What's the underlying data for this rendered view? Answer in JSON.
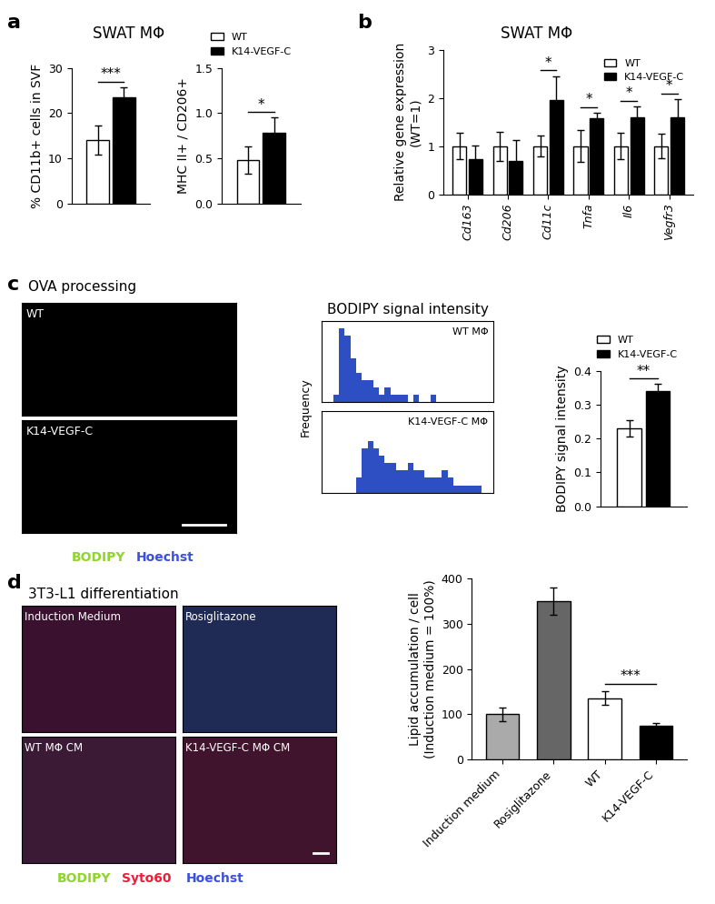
{
  "panels": [
    {
      "label": "a",
      "title": "SWAT MΦ"
    },
    {
      "label": "b",
      "title": "SWAT MΦ"
    },
    {
      "label": "c"
    },
    {
      "label": "d"
    }
  ],
  "images": [
    {
      "title": "OVA processing",
      "tiles": [
        "WT",
        "K14-VEGF-C"
      ],
      "channels": [
        {
          "name": "BODIPY",
          "color": "#8fd62a"
        },
        {
          "name": "Hoechst",
          "color": "#3b4fe0"
        }
      ]
    },
    {
      "title": "3T3-L1 differentiation",
      "tiles": [
        "Induction Medium",
        "Rosiglitazone",
        "WT MΦ CM",
        "K14-VEGF-C MΦ CM"
      ],
      "channels": [
        {
          "name": "BODIPY",
          "color": "#8fd62a"
        },
        {
          "name": "Syto60",
          "color": "#e8203a"
        },
        {
          "name": "Hoechst",
          "color": "#3b4fe0"
        }
      ]
    }
  ],
  "chart_data": [
    {
      "type": "bar",
      "categories": [
        null
      ],
      "ylabel": "% CD11b+ cells in SVF",
      "series": [
        {
          "name": "WT",
          "color": "#ffffff",
          "values": [
            14
          ],
          "errors": [
            3.2
          ]
        },
        {
          "name": "K14-VEGF-C",
          "color": "#000000",
          "values": [
            23.5
          ],
          "errors": [
            2.2
          ]
        }
      ],
      "ylim": [
        0,
        30
      ],
      "yticks": [
        0,
        10,
        20,
        30
      ],
      "annotations": [
        "***"
      ],
      "tick_labels": "y"
    },
    {
      "type": "bar",
      "categories": [
        null
      ],
      "ylabel": "MHC II+ / CD206+",
      "series": [
        {
          "name": "WT",
          "color": "#ffffff",
          "values": [
            0.48
          ],
          "errors": [
            0.15
          ]
        },
        {
          "name": "K14-VEGF-C",
          "color": "#000000",
          "values": [
            0.78
          ],
          "errors": [
            0.17
          ]
        }
      ],
      "ylim": [
        0,
        1.5
      ],
      "yticks": [
        {
          "value": 0,
          "label": "0.0"
        },
        {
          "value": 0.5,
          "label": "0.5"
        },
        {
          "value": 1.0,
          "label": "1.0"
        },
        {
          "value": 1.5,
          "label": "1.5"
        }
      ],
      "annotations": [
        "*"
      ],
      "tick_labels": "y",
      "legend": "lower right"
    },
    {
      "type": "bar",
      "categories": [
        "Cd163",
        "Cd206",
        "Cd11c",
        "Tnfa",
        "Il6",
        "Vegfr3"
      ],
      "ylabel": "Relative gene expression\n(WT=1)",
      "series": [
        {
          "name": "WT",
          "color": "#ffffff",
          "values": [
            1,
            1,
            1,
            1,
            1,
            1
          ],
          "errors": [
            0.27,
            0.3,
            0.22,
            0.33,
            0.27,
            0.26
          ]
        },
        {
          "name": "K14-VEGF-C",
          "color": "#000000",
          "values": [
            0.73,
            0.7,
            1.95,
            1.57,
            1.6,
            1.6
          ],
          "errors": [
            0.28,
            0.43,
            0.5,
            0.12,
            0.22,
            0.37
          ]
        }
      ],
      "ylim": [
        0,
        3
      ],
      "yticks": [
        0,
        1,
        2,
        3
      ],
      "annotations": [
        null,
        null,
        "*",
        "*",
        "*",
        "*"
      ],
      "legend": "upper right"
    },
    {
      "type": "histogram",
      "title": "BODIPY signal intensity",
      "ylabel": "Frequency",
      "bins": [
        0,
        1,
        2,
        3,
        4,
        5,
        6,
        7,
        8,
        9,
        10,
        11,
        12,
        13,
        14,
        15,
        16,
        17,
        18,
        19,
        20,
        21,
        22,
        23,
        24,
        25,
        26,
        27,
        28,
        29,
        30
      ],
      "series": [
        {
          "name": "WT MΦ",
          "color": "#2e4fc4",
          "counts": [
            0,
            0,
            1,
            10,
            9,
            6,
            4,
            3,
            3,
            2,
            1,
            2,
            1,
            1,
            1,
            0,
            1,
            0,
            0,
            1,
            0,
            0,
            0,
            0,
            0,
            0,
            0,
            0,
            0,
            0
          ]
        },
        {
          "name": "K14-VEGF-C MΦ",
          "color": "#2e4fc4",
          "counts": [
            0,
            0,
            0,
            0,
            0,
            0,
            2,
            6,
            7,
            6,
            5,
            4,
            4,
            3,
            3,
            4,
            3,
            3,
            2,
            2,
            2,
            3,
            2,
            1,
            1,
            1,
            1,
            1,
            0,
            0
          ]
        }
      ],
      "xlim": [
        0,
        30
      ],
      "ylim": [
        0,
        11
      ],
      "tick_labels": false
    },
    {
      "type": "bar",
      "categories": [
        null
      ],
      "ylabel": "BODIPY signal intensity",
      "series": [
        {
          "name": "WT",
          "color": "#ffffff",
          "values": [
            0.23
          ],
          "errors": [
            0.025
          ]
        },
        {
          "name": "K14-VEGF-C",
          "color": "#000000",
          "values": [
            0.34
          ],
          "errors": [
            0.02
          ]
        }
      ],
      "ylim": [
        0,
        0.4
      ],
      "yticks": [
        {
          "value": 0,
          "label": "0.0"
        },
        {
          "value": 0.1,
          "label": "0.1"
        },
        {
          "value": 0.2,
          "label": "0.2"
        },
        {
          "value": 0.3,
          "label": "0.3"
        },
        {
          "value": 0.4,
          "label": "0.4"
        }
      ],
      "annotations": [
        "**"
      ],
      "tick_labels": "y",
      "legend": "lower right"
    },
    {
      "type": "bar",
      "categories": [
        "Induction medium",
        "Rosiglitazone",
        "WT",
        "K14-VEGF-C"
      ],
      "ylabel": "Lipid accumulation / cell\n(Induction medium = 100%)",
      "values": [
        100,
        350,
        135,
        75
      ],
      "errors": [
        15,
        30,
        15,
        5
      ],
      "colors": [
        "#aaaaaa",
        "#666666",
        "#ffffff",
        "#000000"
      ],
      "ylim": [
        0,
        400
      ],
      "yticks": [
        0,
        100,
        200,
        300,
        400
      ],
      "annotations": [
        {
          "text": "***",
          "between": [
            "WT",
            "K14-VEGF-C"
          ]
        }
      ]
    }
  ]
}
